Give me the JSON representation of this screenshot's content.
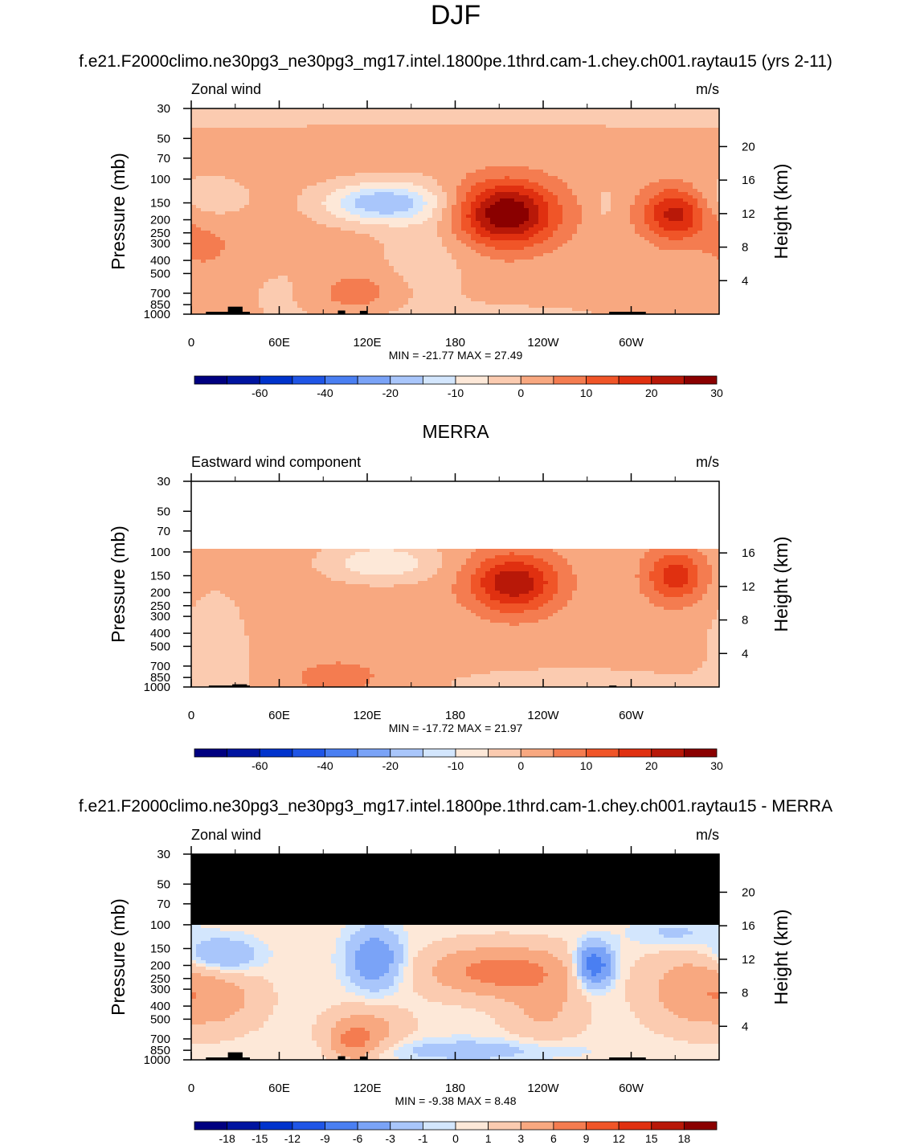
{
  "figure": {
    "title": "DJF",
    "palette": [
      "#000080",
      "#0014a0",
      "#0033cc",
      "#1f55e6",
      "#4a7ff2",
      "#7aa3f7",
      "#a9c6fb",
      "#d3e6fd",
      "#fde8d8",
      "#fbcbb0",
      "#f8a880",
      "#f47c50",
      "#f05528",
      "#e03010",
      "#b81808",
      "#8a0000"
    ],
    "nan_color": "#000000"
  },
  "panels": [
    {
      "heading": "",
      "left_label": "Zonal wind",
      "right_label": "m/s",
      "y_label": "Pressure (mb)",
      "y2_label": "Height (km)",
      "stats": "MIN = -21.77  MAX =  27.49"
    },
    {
      "heading": "MERRA",
      "left_label": "Eastward wind component",
      "right_label": "m/s",
      "y_label": "Pressure (mb)",
      "y2_label": "Height (km)",
      "stats": "MIN = -17.72  MAX =  21.97"
    },
    {
      "heading": "f.e21.F2000climo.ne30pg3_ne30pg3_mg17.intel.1800pe.1thrd.cam-1.chey.ch001.raytau15 - MERRA",
      "left_label": "Zonal wind",
      "right_label": "m/s",
      "y_label": "Pressure (mb)",
      "y2_label": "Height (km)",
      "stats": "MIN =  -9.38  MAX =   8.48"
    }
  ],
  "chart_data": [
    {
      "type": "heatmap",
      "title": "f.e21.F2000climo.ne30pg3_ne30pg3_mg17.intel.1800pe.1thrd.cam-1.chey.ch001.raytau15 (yrs 2-11)",
      "subtitle_left": "Zonal wind",
      "units": "m/s",
      "x_tick_labels": [
        "0",
        "60E",
        "120E",
        "180",
        "120W",
        "60W"
      ],
      "x_ticks_deg": [
        0,
        60,
        120,
        180,
        240,
        300
      ],
      "xlim": [
        0,
        360
      ],
      "y_ticks_mb": [
        30,
        50,
        70,
        100,
        150,
        200,
        250,
        300,
        400,
        500,
        700,
        850,
        1000
      ],
      "ylim_mb": [
        1000,
        30
      ],
      "y_scale": "log",
      "y2_ticks_km": [
        4,
        8,
        12,
        16,
        20
      ],
      "colorbar_labels": [
        "-60",
        "-40",
        "-20",
        "-10",
        "0",
        "10",
        "20",
        "30"
      ],
      "colorbar_levels": [
        -70,
        -60,
        -50,
        -40,
        -30,
        -20,
        -15,
        -10,
        -5,
        0,
        5,
        10,
        15,
        20,
        25,
        30
      ],
      "min": -21.77,
      "max": 27.49,
      "background_value": 2,
      "top_mb": 30,
      "terrain_mb": [
        [
          10,
          40,
          960
        ],
        [
          25,
          35,
          880
        ],
        [
          100,
          105,
          940
        ],
        [
          115,
          120,
          945
        ],
        [
          285,
          310,
          960
        ]
      ],
      "features": [
        {
          "lon": 0,
          "p": 33,
          "lw": 400,
          "ld": 0.2,
          "v": -6
        },
        {
          "lon": 10,
          "p": 140,
          "lw": 30,
          "ld": 0.4,
          "v": -6
        },
        {
          "lon": 130,
          "p": 150,
          "lw": 38,
          "ld": 0.33,
          "v": -21
        },
        {
          "lon": 160,
          "p": 350,
          "lw": 30,
          "ld": 1.0,
          "v": -5
        },
        {
          "lon": 70,
          "p": 700,
          "lw": 40,
          "ld": 0.6,
          "v": -3
        },
        {
          "lon": 200,
          "p": 1100,
          "lw": 100,
          "ld": 0.3,
          "v": -4
        },
        {
          "lon": 215,
          "p": 180,
          "lw": 34,
          "ld": 0.55,
          "v": 28
        },
        {
          "lon": 330,
          "p": 180,
          "lw": 22,
          "ld": 0.45,
          "v": 20
        },
        {
          "lon": 110,
          "p": 700,
          "lw": 30,
          "ld": 0.35,
          "v": 7
        },
        {
          "lon": 10,
          "p": 300,
          "lw": 25,
          "ld": 0.6,
          "v": 4
        },
        {
          "lon": 282,
          "p": 150,
          "lw": 6,
          "ld": 0.3,
          "v": -4
        }
      ]
    },
    {
      "type": "heatmap",
      "title": "MERRA",
      "subtitle_left": "Eastward wind component",
      "units": "m/s",
      "x_tick_labels": [
        "0",
        "60E",
        "120E",
        "180",
        "120W",
        "60W"
      ],
      "x_ticks_deg": [
        0,
        60,
        120,
        180,
        240,
        300
      ],
      "xlim": [
        0,
        360
      ],
      "y_ticks_mb": [
        30,
        50,
        70,
        100,
        150,
        200,
        250,
        300,
        400,
        500,
        700,
        850,
        1000
      ],
      "ylim_mb": [
        1000,
        30
      ],
      "y_scale": "log",
      "y2_ticks_km": [
        4,
        8,
        12,
        16
      ],
      "colorbar_labels": [
        "-60",
        "-40",
        "-20",
        "-10",
        "0",
        "10",
        "20",
        "30"
      ],
      "colorbar_levels": [
        -70,
        -60,
        -50,
        -40,
        -30,
        -20,
        -15,
        -10,
        -5,
        0,
        5,
        10,
        15,
        20,
        25,
        30
      ],
      "min": -17.72,
      "max": 21.97,
      "background_value": 2,
      "top_mb": 100,
      "terrain_mb": [
        [
          12,
          40,
          975
        ],
        [
          28,
          38,
          955
        ],
        [
          285,
          290,
          975
        ]
      ],
      "features": [
        {
          "lon": 15,
          "p": 600,
          "lw": 25,
          "ld": 1.2,
          "v": -5
        },
        {
          "lon": 130,
          "p": 120,
          "lw": 35,
          "ld": 0.3,
          "v": -12
        },
        {
          "lon": 260,
          "p": 950,
          "lw": 80,
          "ld": 0.25,
          "v": -6
        },
        {
          "lon": 220,
          "p": 170,
          "lw": 30,
          "ld": 0.5,
          "v": 22
        },
        {
          "lon": 330,
          "p": 150,
          "lw": 20,
          "ld": 0.45,
          "v": 16
        },
        {
          "lon": 100,
          "p": 850,
          "lw": 30,
          "ld": 0.3,
          "v": 6
        }
      ]
    },
    {
      "type": "heatmap",
      "title": "f.e21.F2000climo.ne30pg3_ne30pg3_mg17.intel.1800pe.1thrd.cam-1.chey.ch001.raytau15 - MERRA",
      "subtitle_left": "Zonal wind",
      "units": "m/s",
      "x_tick_labels": [
        "0",
        "60E",
        "120E",
        "180",
        "120W",
        "60W"
      ],
      "x_ticks_deg": [
        0,
        60,
        120,
        180,
        240,
        300
      ],
      "xlim": [
        0,
        360
      ],
      "y_ticks_mb": [
        30,
        50,
        70,
        100,
        150,
        200,
        250,
        300,
        400,
        500,
        700,
        850,
        1000
      ],
      "ylim_mb": [
        1000,
        30
      ],
      "y_scale": "log",
      "y2_ticks_km": [
        4,
        8,
        12,
        16,
        20
      ],
      "colorbar_labels": [
        "-18",
        "-15",
        "-12",
        "-9",
        "-6",
        "-3",
        "-1",
        "0",
        "1",
        "3",
        "6",
        "9",
        "12",
        "15",
        "18"
      ],
      "colorbar_levels": [
        -18,
        -15,
        -12,
        -9,
        -6,
        -3,
        -1,
        0,
        1,
        3,
        6,
        9,
        12,
        15,
        18
      ],
      "min": -9.38,
      "max": 8.48,
      "background_value": 0.5,
      "top_mb": 30,
      "missing_above_mb": 100,
      "terrain_mb": [
        [
          10,
          40,
          960
        ],
        [
          25,
          35,
          880
        ],
        [
          100,
          105,
          940
        ],
        [
          115,
          120,
          945
        ],
        [
          285,
          310,
          960
        ]
      ],
      "features": [
        {
          "lon": 20,
          "p": 170,
          "lw": 25,
          "ld": 0.3,
          "v": -4
        },
        {
          "lon": 125,
          "p": 180,
          "lw": 18,
          "ld": 0.5,
          "v": -6
        },
        {
          "lon": 275,
          "p": 200,
          "lw": 12,
          "ld": 0.35,
          "v": -9.4
        },
        {
          "lon": 330,
          "p": 115,
          "lw": 30,
          "ld": 0.25,
          "v": -2
        },
        {
          "lon": 190,
          "p": 850,
          "lw": 70,
          "ld": 0.2,
          "v": -2.5
        },
        {
          "lon": 210,
          "p": 220,
          "lw": 45,
          "ld": 0.4,
          "v": 7
        },
        {
          "lon": 340,
          "p": 300,
          "lw": 30,
          "ld": 0.6,
          "v": 4
        },
        {
          "lon": 15,
          "p": 350,
          "lw": 30,
          "ld": 0.5,
          "v": 4
        },
        {
          "lon": 120,
          "p": 600,
          "lw": 25,
          "ld": 0.4,
          "v": 3.5
        },
        {
          "lon": 240,
          "p": 400,
          "lw": 25,
          "ld": 0.6,
          "v": 3
        },
        {
          "lon": 110,
          "p": 750,
          "lw": 15,
          "ld": 0.3,
          "v": 5
        }
      ]
    }
  ]
}
